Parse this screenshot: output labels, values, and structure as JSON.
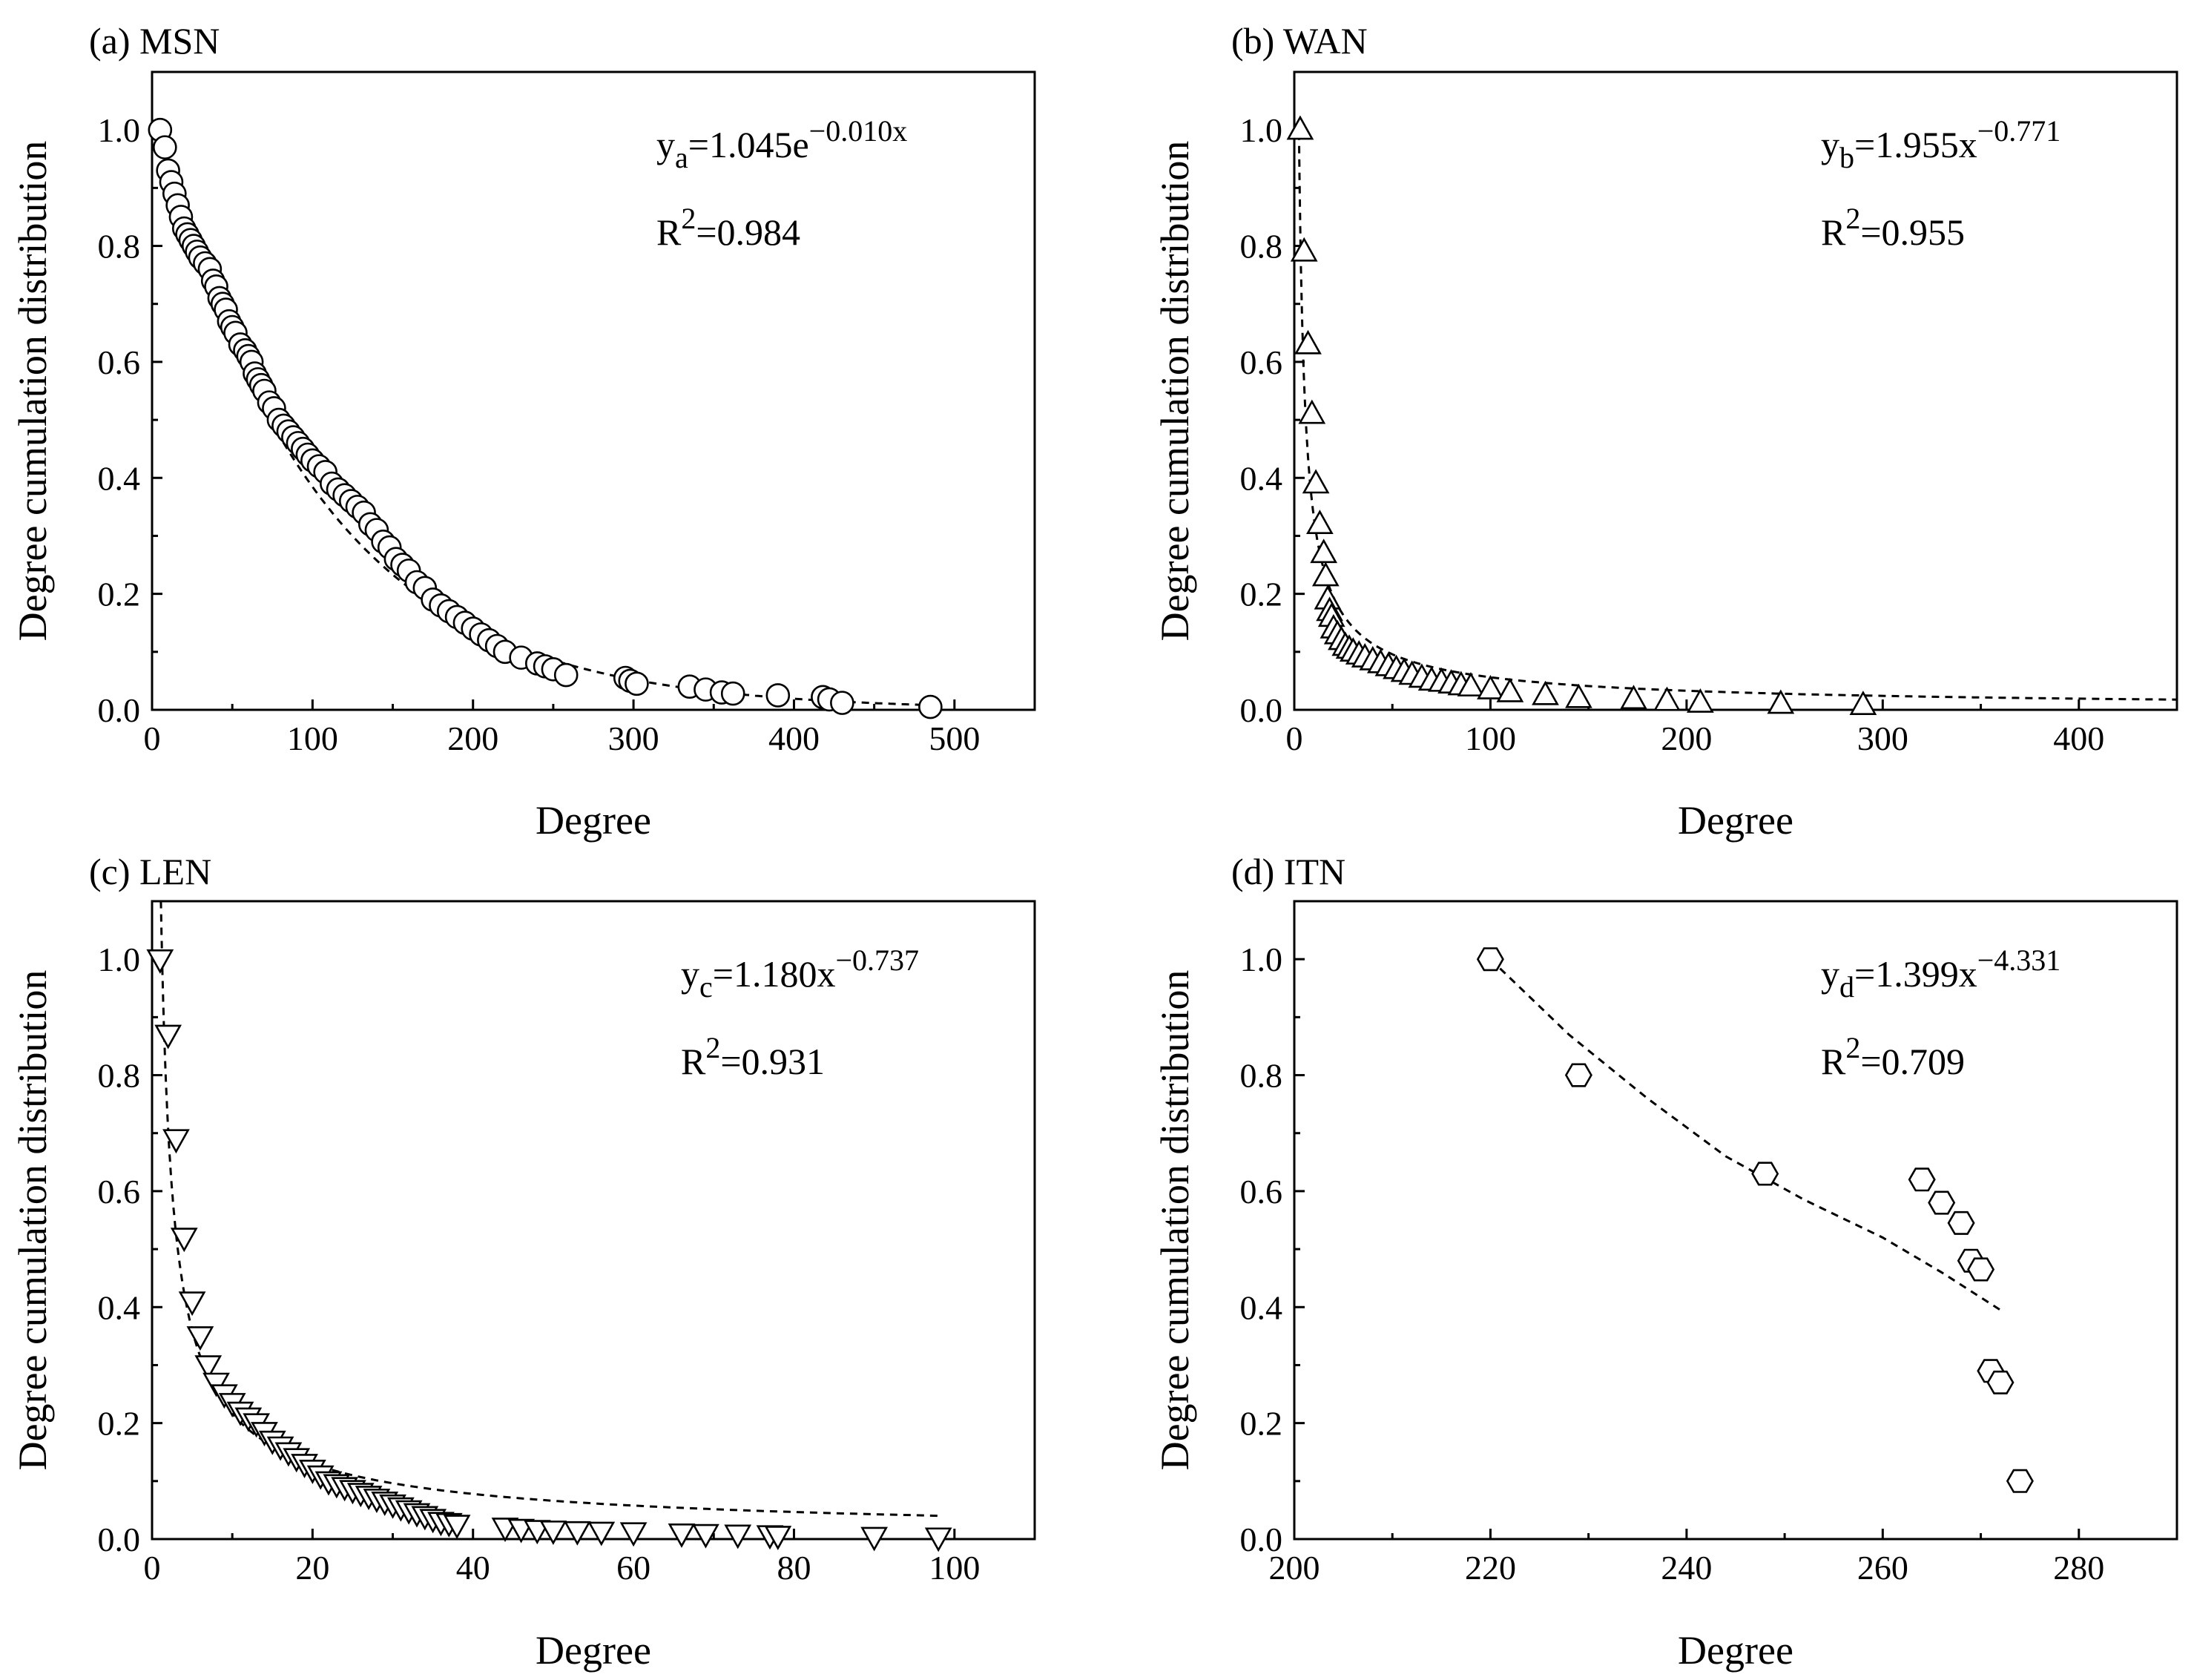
{
  "chart_data": [
    {
      "type": "scatter",
      "panel": "(a) MSN",
      "title": "(a) MSN",
      "xlabel": "Degree",
      "ylabel": "Degree cumulation distribution",
      "xlim": [
        0,
        550
      ],
      "ylim": [
        0,
        1.1
      ],
      "xticks": [
        0,
        100,
        200,
        300,
        400,
        500
      ],
      "xticklabels": [
        "0",
        "100",
        "200",
        "300",
        "400",
        "500"
      ],
      "yticks": [
        0,
        0.2,
        0.4,
        0.6,
        0.8,
        1.0
      ],
      "yticklabels": [
        "0.0",
        "0.2",
        "0.4",
        "0.6",
        "0.8",
        "1.0"
      ],
      "marker": "circle",
      "fit": {
        "kind": "exp",
        "a": 1.045,
        "b": -0.01,
        "xrange": [
          5,
          480
        ]
      },
      "equation": {
        "lhs": "y",
        "sub": "a",
        "main": "=1.045e",
        "sup": "−0.010x"
      },
      "r2": {
        "base": "R",
        "sup": "2",
        "value": "=0.984"
      },
      "x": [
        5,
        8,
        10,
        12,
        14,
        16,
        18,
        20,
        22,
        24,
        26,
        28,
        30,
        33,
        36,
        38,
        40,
        42,
        44,
        46,
        48,
        50,
        52,
        55,
        58,
        60,
        62,
        64,
        66,
        68,
        70,
        73,
        76,
        79,
        82,
        85,
        88,
        91,
        94,
        97,
        100,
        104,
        108,
        112,
        116,
        120,
        124,
        128,
        132,
        136,
        140,
        144,
        148,
        152,
        156,
        160,
        165,
        170,
        175,
        180,
        185,
        190,
        195,
        200,
        205,
        210,
        215,
        220,
        230,
        240,
        245,
        250,
        258,
        295,
        298,
        302,
        335,
        345,
        355,
        362,
        390,
        418,
        422,
        430,
        485
      ],
      "values": [
        1.0,
        0.97,
        0.93,
        0.91,
        0.89,
        0.87,
        0.85,
        0.83,
        0.82,
        0.81,
        0.8,
        0.79,
        0.78,
        0.77,
        0.76,
        0.74,
        0.73,
        0.71,
        0.7,
        0.69,
        0.67,
        0.66,
        0.65,
        0.63,
        0.62,
        0.61,
        0.6,
        0.58,
        0.57,
        0.56,
        0.55,
        0.53,
        0.52,
        0.5,
        0.49,
        0.48,
        0.47,
        0.46,
        0.45,
        0.44,
        0.43,
        0.42,
        0.41,
        0.39,
        0.38,
        0.37,
        0.36,
        0.35,
        0.34,
        0.32,
        0.31,
        0.29,
        0.28,
        0.26,
        0.25,
        0.24,
        0.22,
        0.21,
        0.19,
        0.18,
        0.17,
        0.16,
        0.15,
        0.14,
        0.13,
        0.12,
        0.11,
        0.1,
        0.09,
        0.08,
        0.075,
        0.07,
        0.06,
        0.055,
        0.05,
        0.045,
        0.04,
        0.035,
        0.03,
        0.028,
        0.025,
        0.022,
        0.018,
        0.012,
        0.005
      ]
    },
    {
      "type": "scatter",
      "panel": "(b) WAN",
      "title": "(b) WAN",
      "xlabel": "Degree",
      "ylabel": "Degree cumulation distribution",
      "xlim": [
        0,
        450
      ],
      "ylim": [
        0,
        1.1
      ],
      "xticks": [
        0,
        100,
        200,
        300,
        400
      ],
      "xticklabels": [
        "0",
        "100",
        "200",
        "300",
        "400"
      ],
      "yticks": [
        0,
        0.2,
        0.4,
        0.6,
        0.8,
        1.0
      ],
      "yticklabels": [
        "0.0",
        "0.2",
        "0.4",
        "0.6",
        "0.8",
        "1.0"
      ],
      "marker": "triangle-up",
      "fit": {
        "kind": "power",
        "a": 1.955,
        "b": -0.771,
        "xrange": [
          2.4,
          450
        ]
      },
      "equation": {
        "lhs": "y",
        "sub": "b",
        "main": "=1.955x",
        "sup": "−0.771"
      },
      "r2": {
        "base": "R",
        "sup": "2",
        "value": "=0.955"
      },
      "x": [
        3,
        5,
        7,
        9,
        11,
        13,
        15,
        16,
        17,
        18,
        19,
        20,
        22,
        24,
        26,
        28,
        30,
        33,
        36,
        40,
        44,
        48,
        52,
        56,
        60,
        65,
        70,
        75,
        80,
        85,
        90,
        100,
        110,
        128,
        145,
        173,
        190,
        207,
        248,
        290
      ],
      "values": [
        1.0,
        0.79,
        0.63,
        0.51,
        0.39,
        0.32,
        0.27,
        0.23,
        0.19,
        0.17,
        0.16,
        0.14,
        0.13,
        0.12,
        0.11,
        0.105,
        0.1,
        0.095,
        0.09,
        0.085,
        0.08,
        0.075,
        0.07,
        0.065,
        0.06,
        0.055,
        0.05,
        0.048,
        0.045,
        0.042,
        0.04,
        0.035,
        0.03,
        0.025,
        0.02,
        0.018,
        0.015,
        0.012,
        0.01,
        0.008
      ]
    },
    {
      "type": "scatter",
      "panel": "(c) LEN",
      "title": "(c) LEN",
      "xlabel": "Degree",
      "ylabel": "Degree cumulation distribution",
      "xlim": [
        0,
        110
      ],
      "ylim": [
        0,
        1.1
      ],
      "xticks": [
        0,
        20,
        40,
        60,
        80,
        100
      ],
      "xticklabels": [
        "0",
        "20",
        "40",
        "60",
        "80",
        "100"
      ],
      "yticks": [
        0,
        0.2,
        0.4,
        0.6,
        0.8,
        1.0
      ],
      "yticklabels": [
        "0.0",
        "0.2",
        "0.4",
        "0.6",
        "0.8",
        "1.0"
      ],
      "marker": "triangle-down",
      "fit": {
        "kind": "power",
        "a": 1.18,
        "b": -0.737,
        "xrange": [
          1.05,
          98
        ]
      },
      "equation": {
        "lhs": "y",
        "sub": "c",
        "main": "=1.180x",
        "sup": "−0.737"
      },
      "r2": {
        "base": "R",
        "sup": "2",
        "value": "=0.931"
      },
      "x": [
        1,
        2,
        3,
        4,
        5,
        6,
        7,
        8,
        9,
        10,
        11,
        12,
        13,
        14,
        15,
        16,
        17,
        18,
        19,
        20,
        21,
        22,
        23,
        24,
        25,
        26,
        27,
        28,
        29,
        30,
        31,
        32,
        33,
        34,
        35,
        36,
        37,
        38,
        44,
        46,
        48,
        50,
        53,
        56,
        60,
        66,
        69,
        73,
        77,
        78,
        90,
        98
      ],
      "values": [
        1.0,
        0.87,
        0.69,
        0.52,
        0.41,
        0.35,
        0.3,
        0.27,
        0.25,
        0.235,
        0.22,
        0.21,
        0.2,
        0.185,
        0.17,
        0.16,
        0.15,
        0.14,
        0.13,
        0.12,
        0.11,
        0.1,
        0.095,
        0.09,
        0.085,
        0.08,
        0.075,
        0.07,
        0.065,
        0.06,
        0.055,
        0.05,
        0.045,
        0.04,
        0.035,
        0.03,
        0.028,
        0.025,
        0.02,
        0.018,
        0.016,
        0.015,
        0.014,
        0.013,
        0.012,
        0.01,
        0.009,
        0.008,
        0.007,
        0.006,
        0.004,
        0.003
      ]
    },
    {
      "type": "scatter",
      "panel": "(d) ITN",
      "title": "(d) ITN",
      "xlabel": "Degree",
      "ylabel": "Degree cumulation distribution",
      "xlim": [
        200,
        290
      ],
      "ylim": [
        0,
        1.1
      ],
      "xticks": [
        200,
        220,
        240,
        260,
        280
      ],
      "xticklabels": [
        "200",
        "220",
        "240",
        "260",
        "280"
      ],
      "yticks": [
        0,
        0.2,
        0.4,
        0.6,
        0.8,
        1.0
      ],
      "yticklabels": [
        "0.0",
        "0.2",
        "0.4",
        "0.6",
        "0.8",
        "1.0"
      ],
      "marker": "hexagon",
      "fit": {
        "kind": "custom",
        "points": [
          [
            220,
            1.0
          ],
          [
            228,
            0.87
          ],
          [
            236,
            0.76
          ],
          [
            244,
            0.66
          ],
          [
            252,
            0.585
          ],
          [
            260,
            0.52
          ],
          [
            266,
            0.46
          ],
          [
            272,
            0.395
          ]
        ]
      },
      "equation": {
        "lhs": "y",
        "sub": "d",
        "main": "=1.399x",
        "sup": "−4.331"
      },
      "r2": {
        "base": "R",
        "sup": "2",
        "value": "=0.709"
      },
      "x": [
        220,
        229,
        248,
        264,
        266,
        268,
        269,
        270,
        271,
        272,
        274
      ],
      "values": [
        1.0,
        0.8,
        0.63,
        0.62,
        0.58,
        0.545,
        0.48,
        0.465,
        0.29,
        0.27,
        0.1
      ]
    }
  ]
}
